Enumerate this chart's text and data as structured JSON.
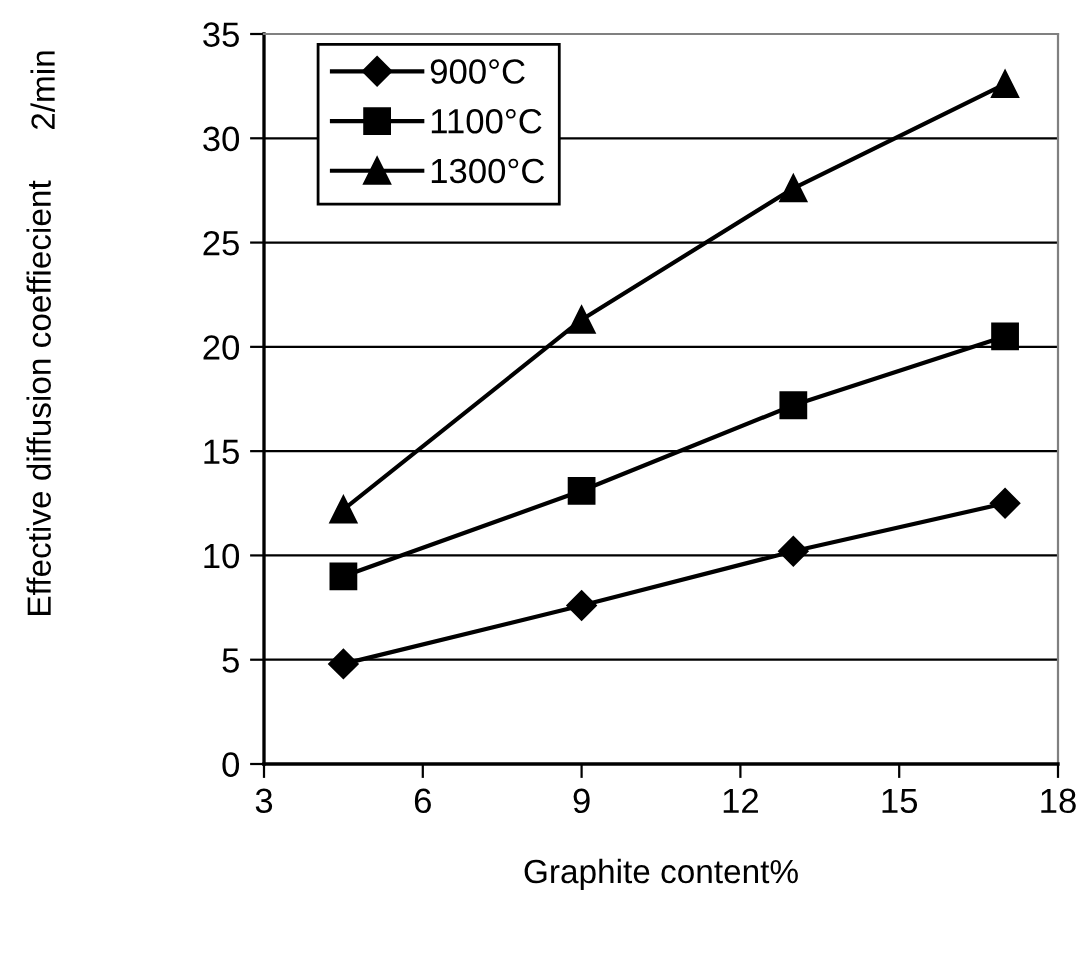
{
  "chart_data": {
    "type": "line",
    "xlabel": "Graphite content%",
    "ylabel": "Effective diffusion coeffiecient",
    "annotations": [
      "2/min"
    ],
    "x": [
      4.5,
      9,
      13,
      17
    ],
    "series": [
      {
        "name": "900°C",
        "color": "#000000",
        "marker": "diamond",
        "values": [
          4.8,
          7.6,
          10.2,
          12.5
        ]
      },
      {
        "name": "1100°C",
        "color": "#000000",
        "marker": "square",
        "values": [
          9.0,
          13.1,
          17.2,
          20.5
        ]
      },
      {
        "name": "1300°C",
        "color": "#000000",
        "marker": "triangle",
        "values": [
          12.2,
          21.3,
          27.6,
          32.6
        ]
      }
    ],
    "xlim": [
      3,
      18
    ],
    "xticks": [
      3,
      6,
      9,
      12,
      15,
      18
    ],
    "ylim": [
      0,
      35
    ],
    "yticks": [
      0,
      5,
      10,
      15,
      20,
      25,
      30,
      35
    ],
    "grid": "y",
    "legend": "top left",
    "line_style": "solid"
  }
}
